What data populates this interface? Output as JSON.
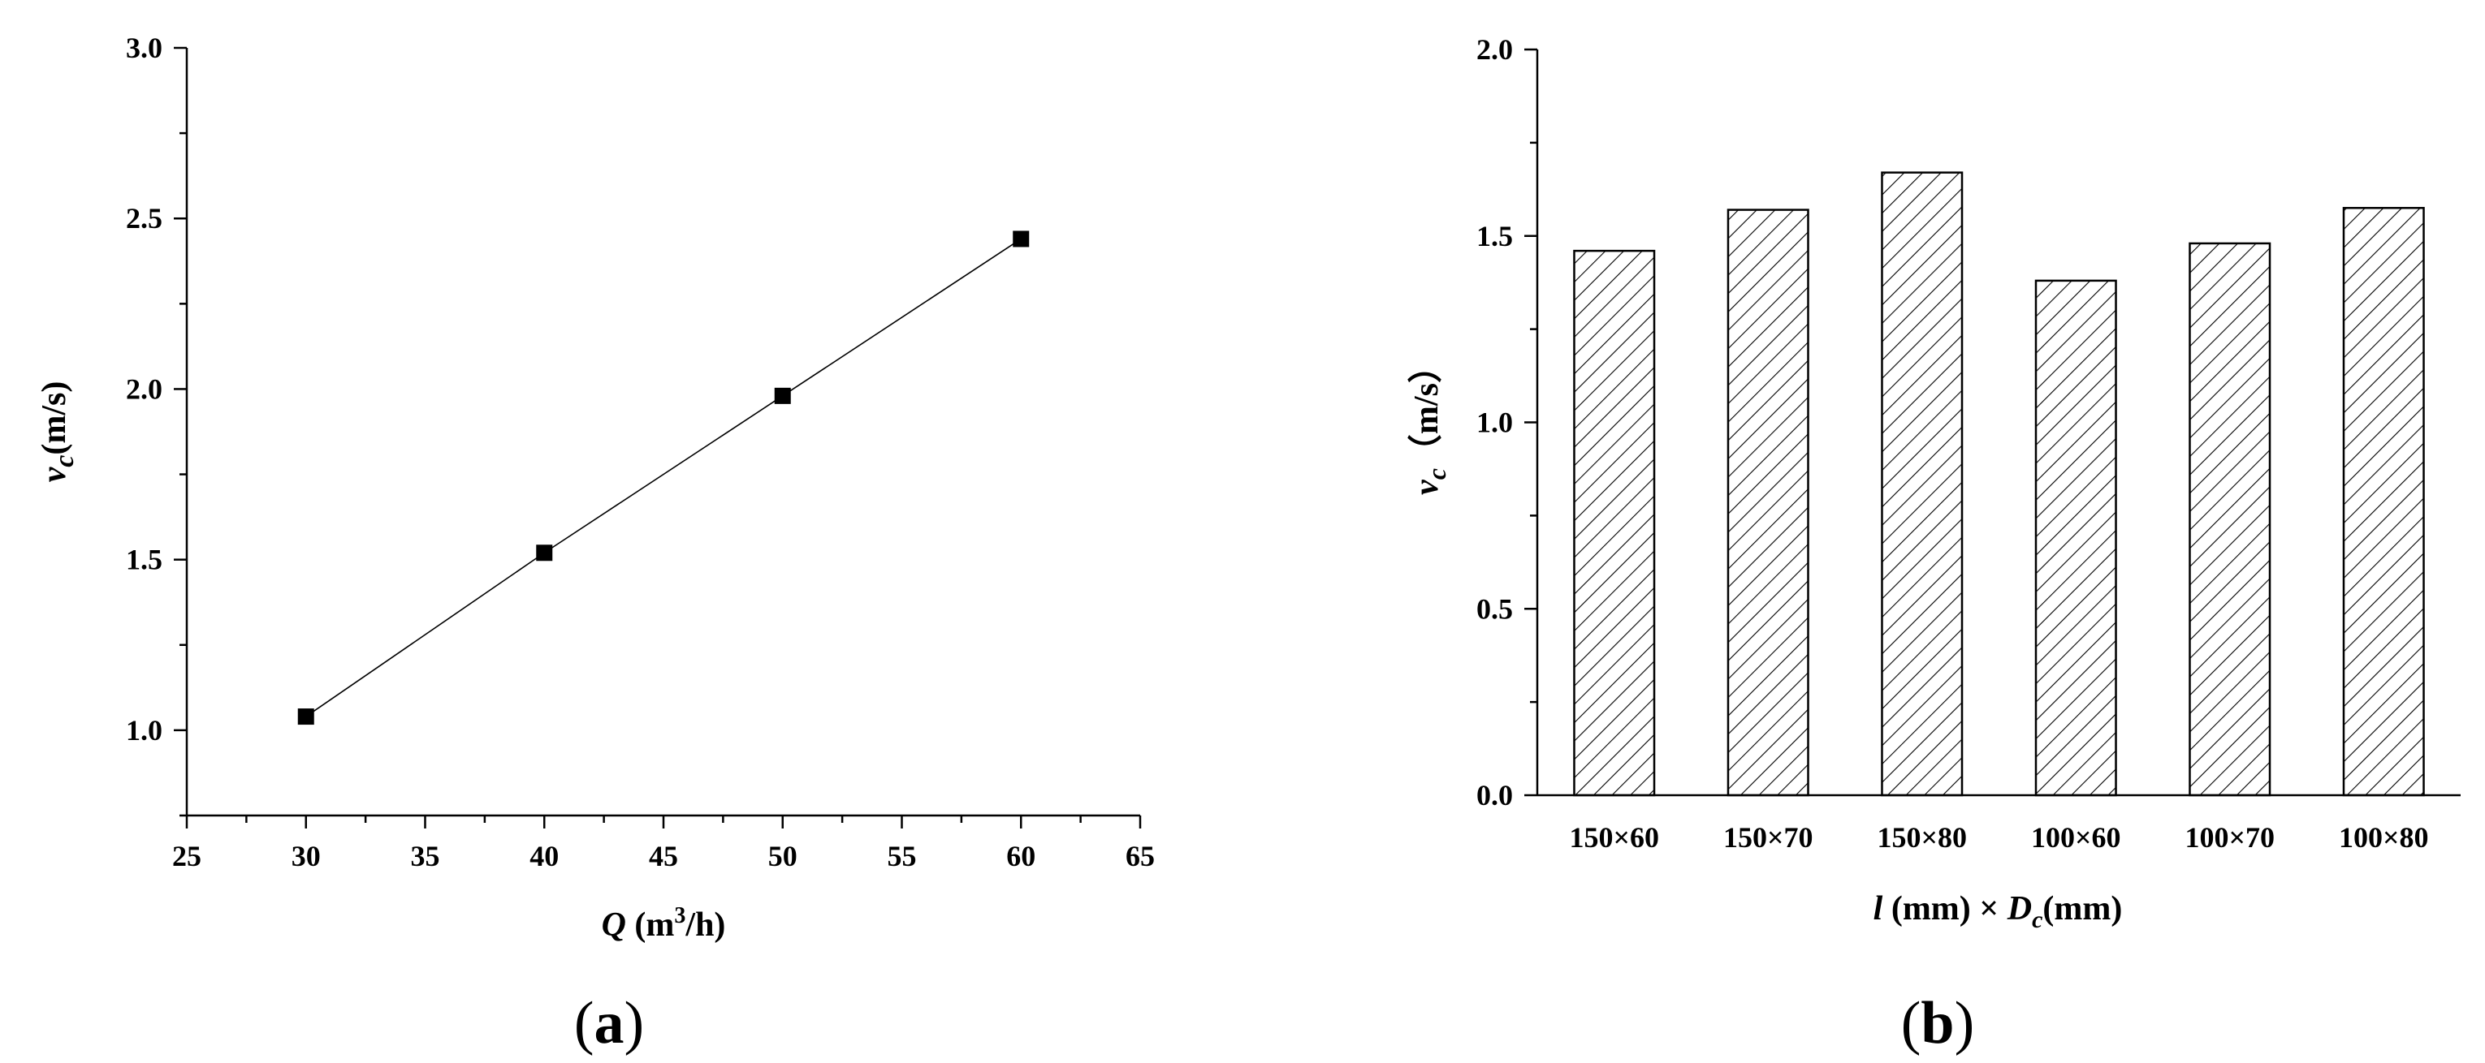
{
  "chart_data": [
    {
      "type": "line",
      "panel_label": {
        "open": "(",
        "letter": "a",
        "close": ")"
      },
      "xlabel": {
        "var": "Q",
        "unit_pre": " (m",
        "sup": "3",
        "unit_post": "/h)"
      },
      "ylabel": {
        "var": "v",
        "sub": "c",
        "unit": "(m/s)"
      },
      "xlim": [
        25,
        65
      ],
      "ylim": [
        0.75,
        3.0
      ],
      "xticks": [
        "25",
        "30",
        "35",
        "40",
        "45",
        "50",
        "55",
        "60",
        "65"
      ],
      "yticks": [
        "1.0",
        "1.5",
        "2.0",
        "2.5",
        "3.0"
      ],
      "x": [
        30,
        40,
        50,
        60
      ],
      "y": [
        1.04,
        1.52,
        1.98,
        2.44
      ],
      "marker": "square",
      "grid": false
    },
    {
      "type": "bar",
      "panel_label": {
        "open": "(",
        "letter": "b",
        "close": ")"
      },
      "xlabel": {
        "var1": "l",
        "mid": " (mm) × ",
        "var2": "D",
        "sub": "c",
        "unit": "(mm)"
      },
      "ylabel": {
        "var": "v",
        "sub": "c",
        "unit": "（m/s）"
      },
      "ylim": [
        0.0,
        2.0
      ],
      "yticks": [
        "0.0",
        "0.5",
        "1.0",
        "1.5",
        "2.0"
      ],
      "categories": [
        "150×60",
        "150×70",
        "150×80",
        "100×60",
        "100×70",
        "100×80"
      ],
      "values": [
        1.46,
        1.57,
        1.67,
        1.38,
        1.48,
        1.575
      ],
      "fill": "diagonal-hatch",
      "grid": false
    }
  ]
}
